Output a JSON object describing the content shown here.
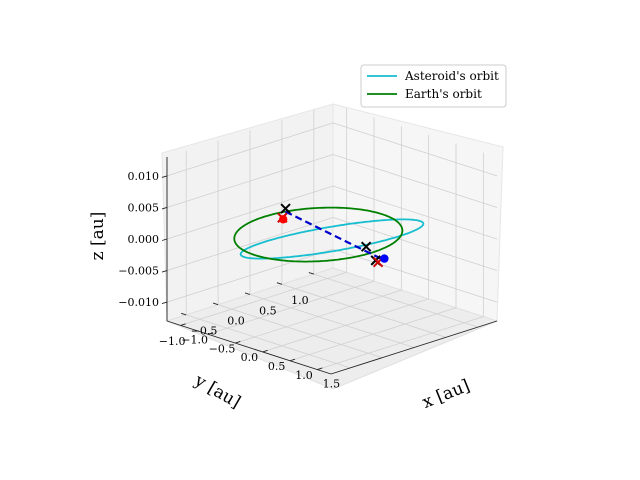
{
  "chart_data": {
    "type": "line",
    "projection": "3d",
    "xlabel": "x [au]",
    "ylabel": "y [au]",
    "zlabel": "z [au]",
    "x_ticks": [
      "−1.0",
      "−0.5",
      "0.0",
      "0.5",
      "1.0",
      "1.5"
    ],
    "y_ticks": [
      "1.0",
      "0.5",
      "0.0",
      "−0.5",
      "−1.0"
    ],
    "z_ticks": [
      "0.010",
      "0.005",
      "0.000",
      "−0.005",
      "−0.010"
    ],
    "xlim": [
      -1.25,
      1.75
    ],
    "ylim": [
      -1.3,
      1.3
    ],
    "zlim": [
      -0.013,
      0.013
    ],
    "grid": true,
    "legend_position": "top-right",
    "series": [
      {
        "name": "Asteroid's orbit",
        "color": "#17becf",
        "style": "solid",
        "orbit": {
          "center_x": 0.25,
          "center_y": 0,
          "semi_x": 1.25,
          "semi_y": 0.95,
          "z_amplitude": 0.004
        }
      },
      {
        "name": "Earth's orbit",
        "color": "#008000",
        "style": "solid",
        "orbit": {
          "center_x": 0,
          "center_y": 0,
          "semi_x": 1.0,
          "semi_y": 1.0,
          "z_amplitude": 0.0
        }
      }
    ],
    "transfer_path": {
      "color": "#0000cc",
      "style": "dashed",
      "points": [
        {
          "x": -0.95,
          "y": 0.3,
          "z": 0.0
        },
        {
          "x": 1.45,
          "y": -0.25,
          "z": 0.001
        }
      ]
    },
    "markers": [
      {
        "shape": "x",
        "color": "#000000",
        "x": -0.95,
        "y": 0.3,
        "z": 0.0005
      },
      {
        "shape": "x",
        "color": "#000000",
        "x": 1.05,
        "y": -0.15,
        "z": 0.0015
      },
      {
        "shape": "x",
        "color": "#000000",
        "x": 1.4,
        "y": -0.3,
        "z": 0.0008
      },
      {
        "shape": "x",
        "color": "#cc0000",
        "x": -0.95,
        "y": 0.25,
        "z": -0.0008
      },
      {
        "shape": "x",
        "color": "#cc0000",
        "x": 1.42,
        "y": -0.28,
        "z": 0.0005
      },
      {
        "shape": "dot",
        "color": "#ff0000",
        "x": -0.97,
        "y": 0.28,
        "z": -0.0012
      },
      {
        "shape": "dot",
        "color": "#0000ff",
        "x": 1.5,
        "y": -0.25,
        "z": 0.0012
      }
    ]
  }
}
